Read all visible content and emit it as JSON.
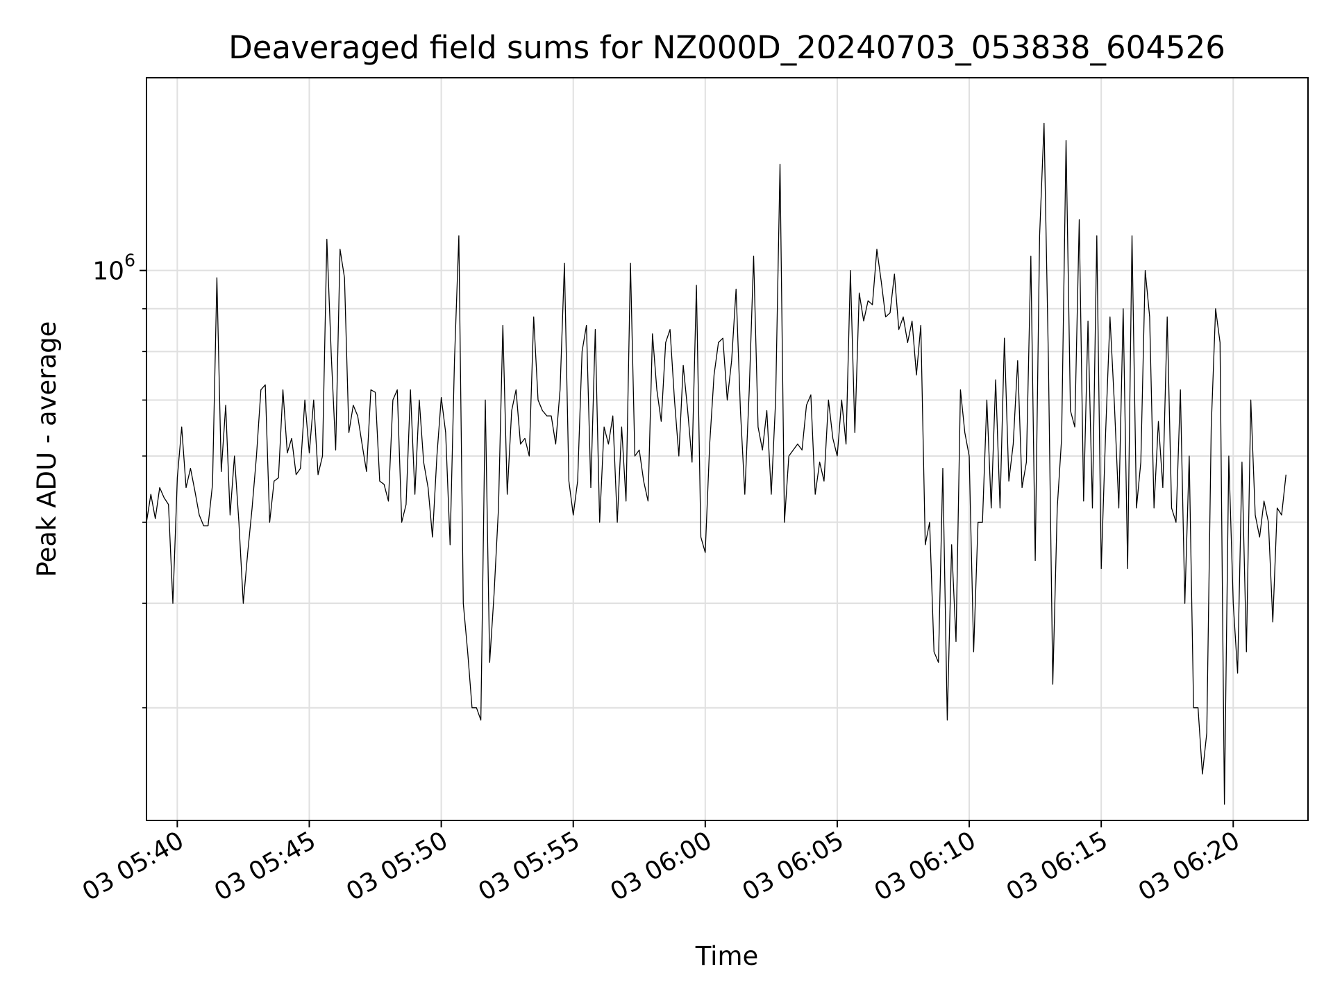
{
  "chart_data": {
    "type": "line",
    "title": "Deaveraged field sums for NZ000D_20240703_053838_604526",
    "xlabel": "Time",
    "ylabel": "Peak ADU - average",
    "yscale": "log",
    "grid": true,
    "x_range": [
      "2024-07-03 05:38:50",
      "2024-07-03 06:22:50"
    ],
    "ylim": [
      220000,
      1700000
    ],
    "x_ticks": [
      {
        "t": "2024-07-03 05:40:00",
        "label": "03 05:40"
      },
      {
        "t": "2024-07-03 05:45:00",
        "label": "03 05:45"
      },
      {
        "t": "2024-07-03 05:50:00",
        "label": "03 05:50"
      },
      {
        "t": "2024-07-03 05:55:00",
        "label": "03 05:55"
      },
      {
        "t": "2024-07-03 06:00:00",
        "label": "03 06:00"
      },
      {
        "t": "2024-07-03 06:05:00",
        "label": "03 06:05"
      },
      {
        "t": "2024-07-03 06:10:00",
        "label": "03 06:10"
      },
      {
        "t": "2024-07-03 06:15:00",
        "label": "03 06:15"
      },
      {
        "t": "2024-07-03 06:20:00",
        "label": "03 06:20"
      }
    ],
    "y_major_ticks": [
      {
        "value": 1000000,
        "base": "10",
        "exp": "6"
      }
    ],
    "y_minor_ticks": [
      300000,
      400000,
      500000,
      600000,
      700000,
      800000,
      900000
    ],
    "line_color": "#000000",
    "grid_color": "#e0e0e0",
    "series": [
      {
        "x_start": "2024-07-03 05:38:50",
        "x_step_seconds": 10,
        "y": [
          500000,
          540000,
          505000,
          550000,
          535000,
          525000,
          400000,
          565000,
          650000,
          550000,
          580000,
          545000,
          510000,
          495000,
          495000,
          555000,
          980000,
          575000,
          690000,
          510000,
          600000,
          500000,
          400000,
          460000,
          520000,
          600000,
          720000,
          730000,
          500000,
          560000,
          565000,
          720000,
          605000,
          630000,
          570000,
          580000,
          700000,
          605000,
          700000,
          570000,
          600000,
          1090000,
          790000,
          610000,
          1060000,
          980000,
          640000,
          690000,
          670000,
          620000,
          575000,
          720000,
          715000,
          560000,
          555000,
          530000,
          700000,
          720000,
          500000,
          525000,
          720000,
          540000,
          700000,
          590000,
          550000,
          480000,
          600000,
          705000,
          640000,
          470000,
          780000,
          1100000,
          400000,
          350000,
          300000,
          300000,
          290000,
          700000,
          340000,
          410000,
          520000,
          860000,
          540000,
          680000,
          720000,
          620000,
          630000,
          600000,
          880000,
          700000,
          680000,
          670000,
          670000,
          620000,
          720000,
          1020000,
          560000,
          510000,
          560000,
          800000,
          860000,
          550000,
          850000,
          500000,
          650000,
          620000,
          670000,
          500000,
          650000,
          530000,
          1020000,
          600000,
          610000,
          560000,
          530000,
          840000,
          720000,
          660000,
          820000,
          850000,
          700000,
          600000,
          770000,
          680000,
          590000,
          960000,
          480000,
          460000,
          620000,
          750000,
          820000,
          830000,
          700000,
          780000,
          950000,
          680000,
          540000,
          720000,
          1040000,
          650000,
          610000,
          680000,
          540000,
          700000,
          1340000,
          500000,
          600000,
          610000,
          620000,
          610000,
          690000,
          710000,
          540000,
          590000,
          560000,
          700000,
          630000,
          600000,
          700000,
          620000,
          1000000,
          640000,
          940000,
          870000,
          920000,
          910000,
          1060000,
          970000,
          880000,
          890000,
          990000,
          850000,
          880000,
          820000,
          870000,
          750000,
          860000,
          470000,
          500000,
          350000,
          340000,
          580000,
          290000,
          470000,
          360000,
          720000,
          640000,
          600000,
          350000,
          500000,
          500000,
          700000,
          520000,
          740000,
          520000,
          830000,
          560000,
          620000,
          780000,
          550000,
          590000,
          1040000,
          450000,
          1100000,
          1500000,
          780000,
          320000,
          520000,
          630000,
          1430000,
          680000,
          650000,
          1150000,
          530000,
          870000,
          520000,
          1100000,
          440000,
          640000,
          880000,
          690000,
          520000,
          900000,
          440000,
          1100000,
          520000,
          590000,
          1000000,
          880000,
          520000,
          660000,
          550000,
          880000,
          520000,
          500000,
          720000,
          400000,
          600000,
          300000,
          300000,
          250000,
          280000,
          650000,
          900000,
          820000,
          230000,
          600000,
          400000,
          330000,
          590000,
          350000,
          700000,
          510000,
          480000,
          530000,
          500000,
          380000,
          520000,
          510000,
          570000
        ]
      }
    ]
  }
}
